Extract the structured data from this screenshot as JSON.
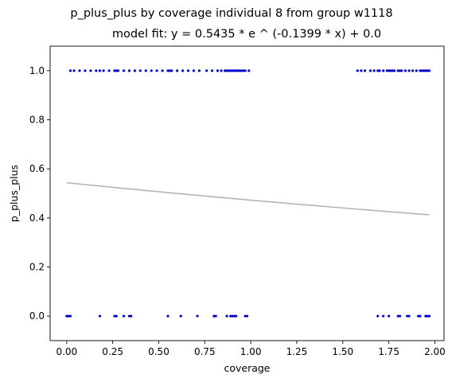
{
  "chart_data": {
    "type": "scatter",
    "title": "p_plus_plus by coverage individual 8 from group w1118",
    "subtitle": "model fit: y = 0.5435 * e ^ (-0.1399 * x) + 0.0",
    "xlabel": "coverage",
    "ylabel": "p_plus_plus",
    "xlim": [
      -0.09,
      2.05
    ],
    "ylim": [
      -0.1,
      1.1
    ],
    "xticks": [
      0.0,
      0.25,
      0.5,
      0.75,
      1.0,
      1.25,
      1.5,
      1.75,
      2.0
    ],
    "xtick_labels": [
      "0.00",
      "0.25",
      "0.50",
      "0.75",
      "1.00",
      "1.25",
      "1.50",
      "1.75",
      "2.00"
    ],
    "yticks": [
      0.0,
      0.2,
      0.4,
      0.6,
      0.8,
      1.0
    ],
    "ytick_labels": [
      "0.0",
      "0.2",
      "0.4",
      "0.6",
      "0.8",
      "1.0"
    ],
    "grid": false,
    "series": [
      {
        "marker_color": "#0000cc",
        "points_y1": [
          0.02,
          0.04,
          0.07,
          0.1,
          0.13,
          0.16,
          0.18,
          0.2,
          0.23,
          0.26,
          0.27,
          0.28,
          0.31,
          0.34,
          0.37,
          0.4,
          0.43,
          0.46,
          0.49,
          0.52,
          0.55,
          0.56,
          0.57,
          0.6,
          0.63,
          0.66,
          0.69,
          0.72,
          0.76,
          0.79,
          0.82,
          0.84,
          0.86,
          0.87,
          0.88,
          0.89,
          0.9,
          0.91,
          0.92,
          0.93,
          0.94,
          0.95,
          0.96,
          0.97,
          0.99,
          1.58,
          1.6,
          1.62,
          1.65,
          1.67,
          1.69,
          1.7,
          1.72,
          1.74,
          1.75,
          1.76,
          1.77,
          1.78,
          1.8,
          1.81,
          1.82,
          1.84,
          1.86,
          1.88,
          1.9,
          1.92,
          1.93,
          1.94,
          1.95,
          1.96,
          1.97
        ],
        "points_y0": [
          0.0,
          0.01,
          0.02,
          0.18,
          0.26,
          0.27,
          0.31,
          0.34,
          0.35,
          0.55,
          0.62,
          0.71,
          0.8,
          0.81,
          0.87,
          0.89,
          0.9,
          0.91,
          0.92,
          0.97,
          0.98,
          1.69,
          1.72,
          1.75,
          1.8,
          1.81,
          1.85,
          1.86,
          1.91,
          1.92,
          1.95,
          1.96,
          1.97
        ]
      }
    ],
    "fit": {
      "equation": "y = 0.5435 * e ^ (-0.1399 * x) + 0.0",
      "a": 0.5435,
      "b": -0.1399,
      "c": 0.0,
      "x_range": [
        0.0,
        1.97
      ],
      "color": "#b3b3b3"
    }
  }
}
